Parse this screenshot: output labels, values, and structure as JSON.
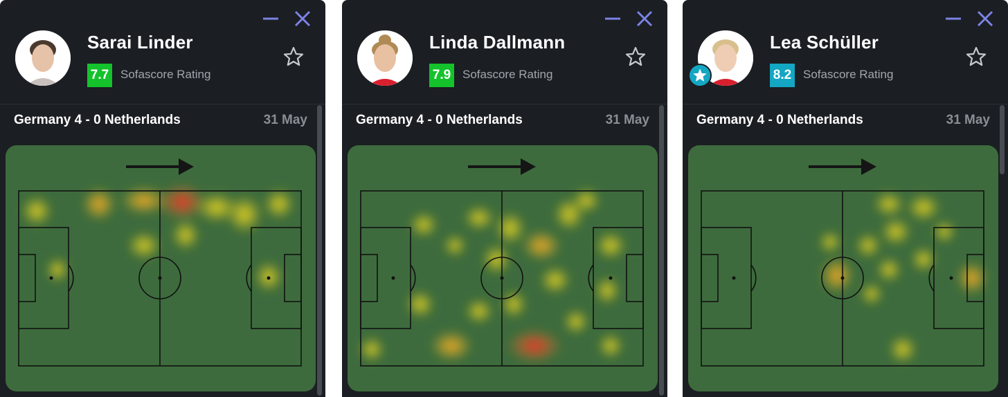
{
  "colors": {
    "panel_bg": "#1b1e23",
    "pitch_bg": "#3d6b3d",
    "window_controls": "#7b83e4"
  },
  "icons": {
    "minimize": "minimize-icon",
    "close": "close-icon",
    "favorite": "star-outline-icon",
    "direction": "arrow-right-icon",
    "badge": "star-badge-icon"
  },
  "panels": [
    {
      "player_name": "Sarai Linder",
      "rating": "7.7",
      "rating_color": "#14c22c",
      "rating_label": "Sofascore Rating",
      "match": "Germany 4 - 0 Netherlands",
      "date": "31 May",
      "star_player": false
    },
    {
      "player_name": "Linda Dallmann",
      "rating": "7.9",
      "rating_color": "#14c22c",
      "rating_label": "Sofascore Rating",
      "match": "Germany 4 - 0 Netherlands",
      "date": "31 May",
      "star_player": false
    },
    {
      "player_name": "Lea Schüller",
      "rating": "8.2",
      "rating_color": "#13a7c3",
      "rating_label": "Sofascore Rating",
      "match": "Germany 4 - 0 Netherlands",
      "date": "31 May",
      "star_player": true
    }
  ]
}
